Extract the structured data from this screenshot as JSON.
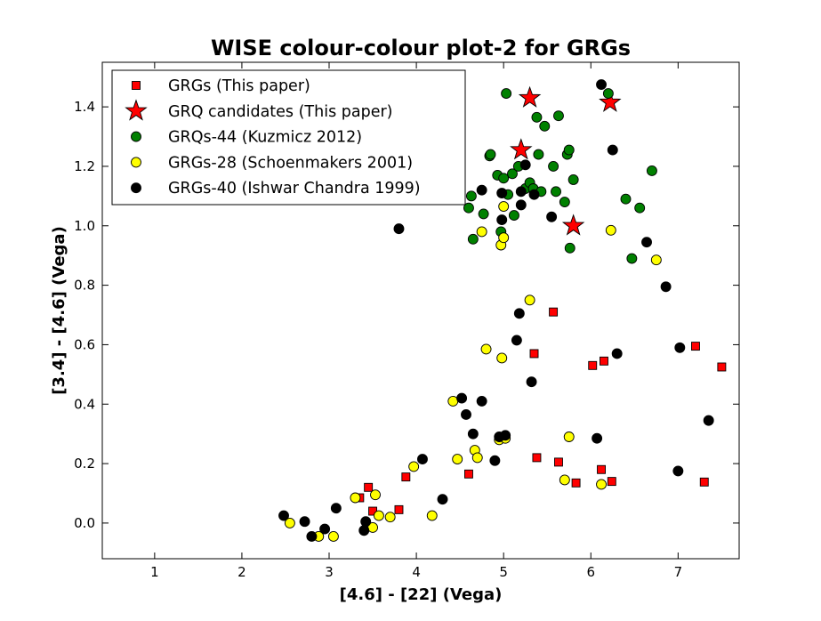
{
  "chart_data": {
    "type": "scatter",
    "title": "WISE colour-colour plot-2 for GRGs",
    "xlabel": "[4.6] - [22] (Vega)",
    "ylabel": "[3.4] - [4.6] (Vega)",
    "xlim": [
      0.4,
      7.7
    ],
    "ylim": [
      -0.12,
      1.55
    ],
    "xticks": [
      1,
      2,
      3,
      4,
      5,
      6,
      7
    ],
    "yticks": [
      0.0,
      0.2,
      0.4,
      0.6,
      0.8,
      1.0,
      1.2,
      1.4
    ],
    "xtick_labels": [
      "1",
      "2",
      "3",
      "4",
      "5",
      "6",
      "7"
    ],
    "ytick_labels": [
      "0.0",
      "0.2",
      "0.4",
      "0.6",
      "0.8",
      "1.0",
      "1.2",
      "1.4"
    ],
    "grid": false,
    "legend_position": "upper-left",
    "series": [
      {
        "name": "GRGs (This paper)",
        "marker": "square",
        "color": "#ff0000",
        "points": [
          [
            3.35,
            0.085
          ],
          [
            3.45,
            0.12
          ],
          [
            3.5,
            0.04
          ],
          [
            3.8,
            0.045
          ],
          [
            3.88,
            0.155
          ],
          [
            4.6,
            0.165
          ],
          [
            5.35,
            0.57
          ],
          [
            5.38,
            0.22
          ],
          [
            5.57,
            0.71
          ],
          [
            5.63,
            0.205
          ],
          [
            5.83,
            0.135
          ],
          [
            6.02,
            0.53
          ],
          [
            6.12,
            0.18
          ],
          [
            6.15,
            0.545
          ],
          [
            6.24,
            0.14
          ],
          [
            7.2,
            0.595
          ],
          [
            7.3,
            0.138
          ],
          [
            7.5,
            0.525
          ]
        ]
      },
      {
        "name": "GRQ candidates (This paper)",
        "marker": "star",
        "color": "#ff0000",
        "points": [
          [
            5.2,
            1.255
          ],
          [
            5.3,
            1.43
          ],
          [
            5.8,
            1.0
          ],
          [
            6.22,
            1.415
          ]
        ]
      },
      {
        "name": "GRQs-44 (Kuzmicz 2012)",
        "marker": "circle",
        "color": "#008000",
        "points": [
          [
            4.6,
            1.06
          ],
          [
            4.63,
            1.1
          ],
          [
            4.65,
            0.955
          ],
          [
            4.77,
            1.04
          ],
          [
            4.84,
            1.235
          ],
          [
            4.85,
            1.24
          ],
          [
            4.93,
            1.17
          ],
          [
            4.97,
            0.98
          ],
          [
            5.0,
            1.16
          ],
          [
            5.03,
            1.445
          ],
          [
            5.05,
            1.105
          ],
          [
            5.1,
            1.175
          ],
          [
            5.12,
            1.035
          ],
          [
            5.17,
            1.2
          ],
          [
            5.25,
            1.125
          ],
          [
            5.3,
            1.145
          ],
          [
            5.34,
            1.125
          ],
          [
            5.38,
            1.365
          ],
          [
            5.4,
            1.24
          ],
          [
            5.43,
            1.115
          ],
          [
            5.47,
            1.335
          ],
          [
            5.57,
            1.2
          ],
          [
            5.6,
            1.115
          ],
          [
            5.63,
            1.37
          ],
          [
            5.7,
            1.08
          ],
          [
            5.73,
            1.24
          ],
          [
            5.75,
            1.255
          ],
          [
            5.76,
            0.925
          ],
          [
            5.8,
            1.155
          ],
          [
            6.2,
            1.445
          ],
          [
            6.4,
            1.09
          ],
          [
            6.47,
            0.89
          ],
          [
            6.56,
            1.06
          ],
          [
            6.7,
            1.185
          ]
        ]
      },
      {
        "name": "GRGs-28 (Schoenmakers 2001)",
        "marker": "circle",
        "color": "#ffff00",
        "points": [
          [
            2.55,
            0.0
          ],
          [
            2.88,
            -0.045
          ],
          [
            3.05,
            -0.045
          ],
          [
            3.3,
            0.085
          ],
          [
            3.5,
            -0.015
          ],
          [
            3.53,
            0.095
          ],
          [
            3.57,
            0.025
          ],
          [
            3.7,
            0.02
          ],
          [
            3.97,
            0.19
          ],
          [
            4.18,
            0.025
          ],
          [
            4.42,
            0.41
          ],
          [
            4.47,
            0.215
          ],
          [
            4.67,
            0.245
          ],
          [
            4.7,
            0.22
          ],
          [
            4.8,
            0.585
          ],
          [
            4.95,
            0.28
          ],
          [
            4.97,
            0.935
          ],
          [
            4.98,
            0.555
          ],
          [
            5.0,
            0.96
          ],
          [
            5.0,
            1.065
          ],
          [
            5.02,
            0.285
          ],
          [
            5.3,
            0.75
          ],
          [
            5.7,
            0.145
          ],
          [
            5.75,
            0.29
          ],
          [
            6.12,
            0.13
          ],
          [
            6.23,
            0.985
          ],
          [
            6.75,
            0.885
          ],
          [
            4.75,
            0.98
          ]
        ]
      },
      {
        "name": "GRGs-40 (Ishwar Chandra 1999)",
        "marker": "circle",
        "color": "#000000",
        "points": [
          [
            2.48,
            0.025
          ],
          [
            2.72,
            0.005
          ],
          [
            2.8,
            -0.045
          ],
          [
            2.95,
            -0.02
          ],
          [
            3.08,
            0.05
          ],
          [
            3.4,
            -0.025
          ],
          [
            3.42,
            0.005
          ],
          [
            3.8,
            0.99
          ],
          [
            4.07,
            0.215
          ],
          [
            4.3,
            0.08
          ],
          [
            4.52,
            0.42
          ],
          [
            4.57,
            0.365
          ],
          [
            4.65,
            0.3
          ],
          [
            4.75,
            0.41
          ],
          [
            4.75,
            1.12
          ],
          [
            4.9,
            0.21
          ],
          [
            4.95,
            0.29
          ],
          [
            4.98,
            1.02
          ],
          [
            4.98,
            1.11
          ],
          [
            5.02,
            0.295
          ],
          [
            5.15,
            0.615
          ],
          [
            5.18,
            0.705
          ],
          [
            5.2,
            1.07
          ],
          [
            5.25,
            1.205
          ],
          [
            5.32,
            0.475
          ],
          [
            5.35,
            1.105
          ],
          [
            5.55,
            1.03
          ],
          [
            6.07,
            0.285
          ],
          [
            6.12,
            1.475
          ],
          [
            6.25,
            1.255
          ],
          [
            6.3,
            0.57
          ],
          [
            6.64,
            0.945
          ],
          [
            6.86,
            0.795
          ],
          [
            7.0,
            0.175
          ],
          [
            7.02,
            0.59
          ],
          [
            7.35,
            0.345
          ],
          [
            5.2,
            1.115
          ]
        ]
      }
    ]
  }
}
